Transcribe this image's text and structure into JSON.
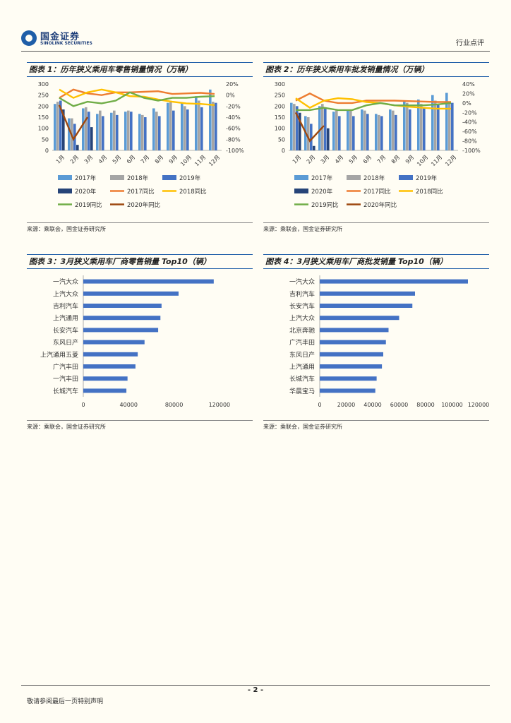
{
  "header": {
    "logo_cn": "国金证券",
    "logo_en": "SINOLINK SECURITIES",
    "doc_type": "行业点评"
  },
  "colors": {
    "y2017": "#5b9bd5",
    "y2018": "#a5a5a5",
    "y2019": "#4472c4",
    "y2020": "#264478",
    "yoy2017": "#ed7d31",
    "yoy2018": "#ffc000",
    "yoy2019": "#70ad47",
    "yoy2020": "#9e480e",
    "hbar": "#4472c4"
  },
  "panels": [
    {
      "title": "图表 1：历年狭义乘用车零售销量情况（万辆）",
      "source": "来源：乘联会，国金证券研究所"
    },
    {
      "title": "图表 2：历年狭义乘用车批发销量情况（万辆）",
      "source": "来源：乘联会，国金证券研究所"
    },
    {
      "title": "图表 3：3月狭义乘用车厂商零售销量 Top10（辆）",
      "source": "来源：乘联会，国金证券研究所"
    },
    {
      "title": "图表 4：3月狭义乘用车厂商批发销量 Top10（辆）",
      "source": "来源：乘联会，国金证券研究所"
    }
  ],
  "chart_data": [
    {
      "type": "bar",
      "title": "图表 1：历年狭义乘用车零售销量情况（万辆）",
      "categories": [
        "1月",
        "2月",
        "3月",
        "4月",
        "5月",
        "6月",
        "7月",
        "8月",
        "9月",
        "10月",
        "11月",
        "12月"
      ],
      "ylim": [
        0,
        300
      ],
      "yticks": [
        "0",
        "50",
        "100",
        "150",
        "200",
        "250",
        "300"
      ],
      "y2lim": [
        -100,
        20
      ],
      "y2ticks": [
        "-100%",
        "-80%",
        "-60%",
        "-40%",
        "-20%",
        "0%",
        "20%"
      ],
      "series": [
        {
          "name": "2017年",
          "kind": "bar",
          "color_key": "y2017",
          "values": [
            210,
            145,
            190,
            165,
            170,
            175,
            165,
            190,
            215,
            215,
            245,
            275
          ]
        },
        {
          "name": "2018年",
          "kind": "bar",
          "color_key": "y2018",
          "values": [
            220,
            145,
            195,
            180,
            180,
            180,
            160,
            175,
            220,
            200,
            225,
            220
          ]
        },
        {
          "name": "2019年",
          "kind": "bar",
          "color_key": "y2019",
          "values": [
            225,
            120,
            175,
            155,
            160,
            175,
            150,
            155,
            180,
            185,
            195,
            215
          ]
        },
        {
          "name": "2020年",
          "kind": "bar",
          "color_key": "y2020",
          "values": [
            185,
            25,
            105,
            null,
            null,
            null,
            null,
            null,
            null,
            null,
            null,
            null
          ]
        },
        {
          "name": "2017同比",
          "kind": "line",
          "color_key": "yoy2017",
          "values": [
            -5,
            10,
            3,
            0,
            5,
            5,
            6,
            7,
            2,
            3,
            4,
            2
          ]
        },
        {
          "name": "2018同比",
          "kind": "line",
          "color_key": "yoy2018",
          "values": [
            10,
            -5,
            5,
            10,
            5,
            -2,
            -3,
            -8,
            -12,
            -15,
            -16,
            -18
          ]
        },
        {
          "name": "2019同比",
          "kind": "line",
          "color_key": "yoy2019",
          "values": [
            -5,
            -20,
            -12,
            -15,
            -10,
            5,
            -5,
            -10,
            -5,
            -5,
            -3,
            -2
          ]
        },
        {
          "name": "2020年同比",
          "kind": "line",
          "color_key": "yoy2020",
          "values": [
            -18,
            -80,
            -40,
            null,
            null,
            null,
            null,
            null,
            null,
            null,
            null,
            null
          ]
        }
      ],
      "legend": [
        "2017年",
        "2018年",
        "2019年",
        "2020年",
        "2017同比",
        "2018同比",
        "2019同比",
        "2020年同比"
      ]
    },
    {
      "type": "bar",
      "title": "图表 2：历年狭义乘用车批发销量情况（万辆）",
      "categories": [
        "1月",
        "2月",
        "3月",
        "4月",
        "5月",
        "6月",
        "7月",
        "8月",
        "9月",
        "10月",
        "11月",
        "12月"
      ],
      "ylim": [
        0,
        300
      ],
      "yticks": [
        "0",
        "50",
        "100",
        "150",
        "200",
        "250",
        "300"
      ],
      "y2lim": [
        -100,
        40
      ],
      "y2ticks": [
        "-100%",
        "-80%",
        "-60%",
        "-40%",
        "-20%",
        "0%",
        "20%",
        "40%"
      ],
      "series": [
        {
          "name": "2017年",
          "kind": "bar",
          "color_key": "y2017",
          "values": [
            215,
            155,
            200,
            175,
            180,
            185,
            165,
            185,
            225,
            230,
            250,
            260
          ]
        },
        {
          "name": "2018年",
          "kind": "bar",
          "color_key": "y2018",
          "values": [
            210,
            150,
            210,
            180,
            180,
            180,
            160,
            180,
            215,
            210,
            225,
            215
          ]
        },
        {
          "name": "2019年",
          "kind": "bar",
          "color_key": "y2019",
          "values": [
            200,
            120,
            190,
            155,
            155,
            165,
            155,
            160,
            185,
            190,
            205,
            215
          ]
        },
        {
          "name": "2020年",
          "kind": "bar",
          "color_key": "y2020",
          "values": [
            170,
            20,
            100,
            null,
            null,
            null,
            null,
            null,
            null,
            null,
            null,
            null
          ]
        },
        {
          "name": "2017同比",
          "kind": "line",
          "color_key": "yoy2017",
          "values": [
            5,
            20,
            5,
            0,
            0,
            5,
            5,
            5,
            4,
            3,
            2,
            2
          ]
        },
        {
          "name": "2018同比",
          "kind": "line",
          "color_key": "yoy2018",
          "values": [
            10,
            -10,
            5,
            10,
            8,
            2,
            0,
            -5,
            -8,
            -10,
            -12,
            -12
          ]
        },
        {
          "name": "2019同比",
          "kind": "line",
          "color_key": "yoy2019",
          "values": [
            -15,
            -15,
            -10,
            -15,
            -15,
            -5,
            0,
            -5,
            -5,
            -5,
            -3,
            0
          ]
        },
        {
          "name": "2020年同比",
          "kind": "line",
          "color_key": "yoy2020",
          "values": [
            -20,
            -80,
            -48,
            null,
            null,
            null,
            null,
            null,
            null,
            null,
            null,
            null
          ]
        }
      ],
      "legend": [
        "2017年",
        "2018年",
        "2019年",
        "2020年",
        "2017同比",
        "2018同比",
        "2019同比",
        "2020年同比"
      ]
    },
    {
      "type": "bar",
      "orientation": "horizontal",
      "title": "图表 3：3月狭义乘用车厂商零售销量 Top10（辆）",
      "categories": [
        "一汽大众",
        "上汽大众",
        "吉利汽车",
        "上汽通用",
        "长安汽车",
        "东风日产",
        "上汽通用五菱",
        "广汽丰田",
        "一汽丰田",
        "长城汽车"
      ],
      "values": [
        115000,
        84000,
        69000,
        68000,
        66000,
        54000,
        48000,
        46000,
        39000,
        38000
      ],
      "xlim": [
        0,
        140000
      ],
      "xticks": [
        "0",
        "40000",
        "80000",
        "120000"
      ]
    },
    {
      "type": "bar",
      "orientation": "horizontal",
      "title": "图表 4：3月狭义乘用车厂商批发销量 Top10（辆）",
      "categories": [
        "一汽大众",
        "吉利汽车",
        "长安汽车",
        "上汽大众",
        "北京奔驰",
        "广汽丰田",
        "东风日产",
        "上汽通用",
        "长城汽车",
        "华晨宝马"
      ],
      "values": [
        112000,
        72000,
        70000,
        60000,
        52000,
        50000,
        48000,
        47000,
        43000,
        42000
      ],
      "xlim": [
        0,
        120000
      ],
      "xticks": [
        "0",
        "20000",
        "40000",
        "60000",
        "80000",
        "100000",
        "120000"
      ]
    }
  ],
  "footer": {
    "page_number": "- 2 -",
    "disclaimer": "敬请参阅最后一页特别声明"
  }
}
